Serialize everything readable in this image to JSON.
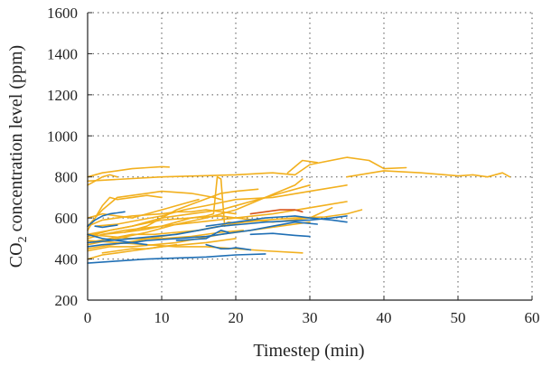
{
  "chart_data": {
    "type": "line",
    "title": "",
    "xlabel": "Timestep (min)",
    "ylabel": {
      "pre": "CO",
      "sub": "2",
      "post": " concentration level (ppm)"
    },
    "xlim": [
      0,
      60
    ],
    "ylim": [
      200,
      1600
    ],
    "xticks": [
      0,
      10,
      20,
      30,
      40,
      50,
      60
    ],
    "yticks": [
      200,
      400,
      600,
      800,
      1000,
      1200,
      1400,
      1600
    ],
    "grid": true,
    "grid_style": "dotted",
    "colors": {
      "yellow": "#f2b01e",
      "blue": "#1f6fb5",
      "red": "#d95319",
      "axis": "#222222",
      "grid": "#555555"
    },
    "series": [
      {
        "color": "yellow",
        "x": [
          0,
          2,
          4,
          6,
          8,
          10,
          11
        ],
        "y": [
          800,
          820,
          830,
          840,
          845,
          850,
          848
        ]
      },
      {
        "color": "yellow",
        "x": [
          0,
          1,
          2,
          3,
          4
        ],
        "y": [
          760,
          780,
          800,
          810,
          800
        ]
      },
      {
        "color": "yellow",
        "x": [
          0,
          5,
          10,
          15,
          20,
          24,
          25,
          28,
          30,
          35,
          38,
          40,
          43
        ],
        "y": [
          780,
          790,
          800,
          805,
          810,
          818,
          820,
          810,
          860,
          895,
          880,
          840,
          845
        ]
      },
      {
        "color": "yellow",
        "x": [
          35,
          40,
          45,
          50,
          52,
          54,
          56,
          57
        ],
        "y": [
          800,
          830,
          820,
          805,
          810,
          800,
          820,
          800
        ]
      },
      {
        "color": "yellow",
        "x": [
          27,
          28,
          29,
          30,
          31
        ],
        "y": [
          820,
          850,
          880,
          875,
          870
        ]
      },
      {
        "color": "yellow",
        "x": [
          0,
          2,
          4,
          6,
          8,
          10,
          14,
          17,
          18
        ],
        "y": [
          560,
          640,
          700,
          710,
          720,
          730,
          720,
          700,
          690
        ]
      },
      {
        "color": "yellow",
        "x": [
          0,
          2,
          5,
          10,
          15,
          20,
          25,
          30,
          35
        ],
        "y": [
          500,
          520,
          540,
          560,
          580,
          600,
          620,
          650,
          680
        ]
      },
      {
        "color": "yellow",
        "x": [
          0,
          3,
          6,
          10,
          14,
          18,
          22,
          26,
          30
        ],
        "y": [
          520,
          540,
          560,
          600,
          620,
          640,
          680,
          720,
          760
        ]
      },
      {
        "color": "yellow",
        "x": [
          0,
          4,
          8,
          12,
          16,
          20,
          24,
          28,
          29
        ],
        "y": [
          470,
          500,
          530,
          570,
          600,
          640,
          700,
          760,
          790
        ]
      },
      {
        "color": "yellow",
        "x": [
          0,
          5,
          10,
          15,
          17,
          18,
          19,
          20,
          24,
          28,
          32,
          35,
          37
        ],
        "y": [
          450,
          480,
          510,
          540,
          555,
          560,
          580,
          575,
          590,
          600,
          605,
          620,
          640
        ]
      },
      {
        "color": "yellow",
        "x": [
          2,
          5,
          8,
          10,
          12,
          14,
          16,
          17,
          17.5,
          18,
          18.5
        ],
        "y": [
          520,
          530,
          545,
          560,
          580,
          600,
          610,
          620,
          800,
          790,
          560
        ]
      },
      {
        "color": "yellow",
        "x": [
          0,
          2,
          4,
          6,
          8,
          10,
          12,
          14,
          16,
          18,
          20
        ],
        "y": [
          560,
          590,
          600,
          610,
          615,
          620,
          630,
          630,
          640,
          630,
          620
        ]
      },
      {
        "color": "yellow",
        "x": [
          0,
          3,
          6,
          9,
          12,
          15,
          18,
          22,
          26,
          30
        ],
        "y": [
          440,
          460,
          460,
          470,
          480,
          500,
          520,
          540,
          560,
          580
        ]
      },
      {
        "color": "yellow",
        "x": [
          0,
          4,
          8,
          12,
          16,
          20,
          24,
          29
        ],
        "y": [
          490,
          480,
          470,
          460,
          460,
          450,
          440,
          430
        ]
      },
      {
        "color": "yellow",
        "x": [
          1,
          4,
          7,
          10,
          13,
          16,
          20,
          25,
          30,
          35
        ],
        "y": [
          560,
          570,
          590,
          610,
          640,
          660,
          690,
          700,
          730,
          760
        ]
      },
      {
        "color": "yellow",
        "x": [
          0,
          3,
          6,
          10,
          14,
          18,
          21
        ],
        "y": [
          520,
          510,
          500,
          500,
          510,
          530,
          540
        ]
      },
      {
        "color": "yellow",
        "x": [
          0,
          2,
          4,
          6,
          8,
          10,
          13,
          16,
          20
        ],
        "y": [
          400,
          420,
          430,
          440,
          450,
          460,
          470,
          480,
          500
        ]
      },
      {
        "color": "yellow",
        "x": [
          5,
          8,
          10,
          12,
          15,
          18,
          20,
          23
        ],
        "y": [
          530,
          560,
          600,
          640,
          680,
          720,
          730,
          740
        ]
      },
      {
        "color": "yellow",
        "x": [
          0,
          3,
          6,
          9,
          12,
          15,
          18,
          21,
          24
        ],
        "y": [
          480,
          500,
          520,
          520,
          530,
          540,
          560,
          580,
          590
        ]
      },
      {
        "color": "yellow",
        "x": [
          2,
          4,
          6,
          8,
          10,
          12
        ],
        "y": [
          430,
          440,
          450,
          450,
          460,
          470
        ]
      },
      {
        "color": "yellow",
        "x": [
          0,
          2,
          4,
          6,
          8,
          10,
          12,
          15
        ],
        "y": [
          600,
          620,
          610,
          600,
          620,
          640,
          660,
          690
        ]
      },
      {
        "color": "yellow",
        "x": [
          0,
          3,
          6,
          10,
          14,
          18,
          20,
          25,
          30,
          33
        ],
        "y": [
          510,
          540,
          560,
          590,
          600,
          610,
          600,
          580,
          600,
          650
        ]
      },
      {
        "color": "yellow",
        "x": [
          0,
          1,
          2,
          3,
          4,
          6,
          8,
          10
        ],
        "y": [
          540,
          600,
          660,
          700,
          690,
          700,
          710,
          700
        ]
      },
      {
        "color": "red",
        "x": [
          22,
          24,
          26,
          28,
          29
        ],
        "y": [
          620,
          630,
          640,
          640,
          630
        ]
      },
      {
        "color": "blue",
        "x": [
          0,
          4,
          8,
          12,
          16,
          20,
          24
        ],
        "y": [
          380,
          390,
          400,
          405,
          410,
          420,
          425
        ]
      },
      {
        "color": "blue",
        "x": [
          0,
          3,
          6,
          9,
          12,
          15,
          18,
          21,
          24,
          27,
          30,
          33,
          35
        ],
        "y": [
          480,
          490,
          500,
          510,
          520,
          540,
          560,
          570,
          580,
          585,
          590,
          600,
          610
        ]
      },
      {
        "color": "blue",
        "x": [
          0,
          2,
          4,
          6,
          8,
          10,
          12,
          14,
          16,
          18,
          20,
          22,
          25,
          28,
          31
        ],
        "y": [
          460,
          470,
          475,
          480,
          490,
          495,
          500,
          505,
          510,
          520,
          530,
          540,
          560,
          580,
          570
        ]
      },
      {
        "color": "blue",
        "x": [
          16,
          18,
          20,
          22,
          24,
          26,
          28,
          30,
          33,
          35
        ],
        "y": [
          560,
          570,
          580,
          590,
          600,
          605,
          610,
          600,
          590,
          580
        ]
      },
      {
        "color": "blue",
        "x": [
          12,
          14,
          16,
          17,
          18,
          19
        ],
        "y": [
          490,
          495,
          500,
          520,
          540,
          530
        ]
      },
      {
        "color": "blue",
        "x": [
          0,
          1,
          2,
          3,
          4,
          5
        ],
        "y": [
          560,
          590,
          610,
          620,
          625,
          630
        ]
      },
      {
        "color": "blue",
        "x": [
          0,
          2,
          4,
          6,
          8
        ],
        "y": [
          520,
          500,
          490,
          480,
          470
        ]
      },
      {
        "color": "blue",
        "x": [
          16,
          17,
          18,
          19,
          20,
          21,
          22
        ],
        "y": [
          470,
          460,
          450,
          450,
          455,
          450,
          445
        ]
      },
      {
        "color": "blue",
        "x": [
          22,
          25,
          28,
          30
        ],
        "y": [
          520,
          525,
          515,
          510
        ]
      },
      {
        "color": "blue",
        "x": [
          1,
          2,
          3,
          4
        ],
        "y": [
          560,
          555,
          560,
          565
        ]
      }
    ]
  }
}
